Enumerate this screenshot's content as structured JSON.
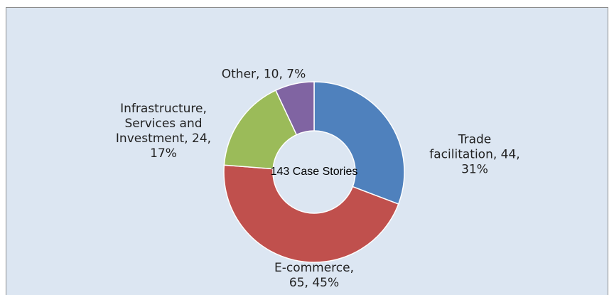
{
  "chart_data": {
    "type": "donut",
    "center_label": "143 Case Stories",
    "categories": [
      "Trade facilitation",
      "E-commerce",
      "Infrastructure, Services and Investment",
      "Other"
    ],
    "values": [
      44,
      65,
      24,
      10
    ],
    "value_labels": [
      "Trade facilitation, 44, 31%",
      "E-commerce, 65, 45%",
      "Infrastructure, Services and Investment, 24, 17%",
      "Other, 10, 7%"
    ],
    "colors": [
      "#4f81bd",
      "#c0504d",
      "#9bbb59",
      "#8064a2"
    ]
  }
}
